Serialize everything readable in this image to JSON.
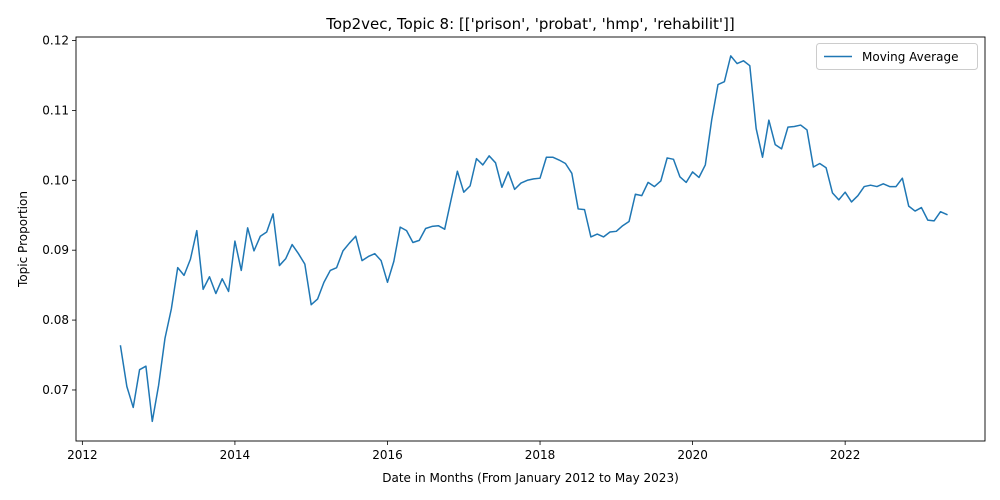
{
  "chart_data": {
    "type": "line",
    "title": "Top2vec, Topic 8: [['prison', 'probat', 'hmp', 'rehabilit']]",
    "xlabel": "Date in Months (From January 2012 to May 2023)",
    "ylabel": "Topic Proportion",
    "x_ticks": [
      "2012",
      "2014",
      "2016",
      "2018",
      "2020",
      "2022"
    ],
    "y_ticks": [
      "0.07",
      "0.08",
      "0.09",
      "0.10",
      "0.11",
      "0.12"
    ],
    "xlim": [
      "2011-12",
      "2023-11"
    ],
    "ylim": [
      0.0627,
      0.1205
    ],
    "grid": false,
    "legend_position": "top-right",
    "series": [
      {
        "name": "Moving Average",
        "color": "#1f77b4",
        "x": [
          "2012-07",
          "2012-08",
          "2012-09",
          "2012-10",
          "2012-11",
          "2012-12",
          "2013-01",
          "2013-02",
          "2013-03",
          "2013-04",
          "2013-05",
          "2013-06",
          "2013-07",
          "2013-08",
          "2013-09",
          "2013-10",
          "2013-11",
          "2013-12",
          "2014-01",
          "2014-02",
          "2014-03",
          "2014-04",
          "2014-05",
          "2014-06",
          "2014-07",
          "2014-08",
          "2014-09",
          "2014-10",
          "2014-11",
          "2014-12",
          "2015-01",
          "2015-02",
          "2015-03",
          "2015-04",
          "2015-05",
          "2015-06",
          "2015-07",
          "2015-08",
          "2015-09",
          "2015-10",
          "2015-11",
          "2015-12",
          "2016-01",
          "2016-02",
          "2016-03",
          "2016-04",
          "2016-05",
          "2016-06",
          "2016-07",
          "2016-08",
          "2016-09",
          "2016-10",
          "2016-11",
          "2016-12",
          "2017-01",
          "2017-02",
          "2017-03",
          "2017-04",
          "2017-05",
          "2017-06",
          "2017-07",
          "2017-08",
          "2017-09",
          "2017-10",
          "2017-11",
          "2017-12",
          "2018-01",
          "2018-02",
          "2018-03",
          "2018-04",
          "2018-05",
          "2018-06",
          "2018-07",
          "2018-08",
          "2018-09",
          "2018-10",
          "2018-11",
          "2018-12",
          "2019-01",
          "2019-02",
          "2019-03",
          "2019-04",
          "2019-05",
          "2019-06",
          "2019-07",
          "2019-08",
          "2019-09",
          "2019-10",
          "2019-11",
          "2019-12",
          "2020-01",
          "2020-02",
          "2020-03",
          "2020-04",
          "2020-05",
          "2020-06",
          "2020-07",
          "2020-08",
          "2020-09",
          "2020-10",
          "2020-11",
          "2020-12",
          "2021-01",
          "2021-02",
          "2021-03",
          "2021-04",
          "2021-05",
          "2021-06",
          "2021-07",
          "2021-08",
          "2021-09",
          "2021-10",
          "2021-11",
          "2021-12",
          "2022-01",
          "2022-02",
          "2022-03",
          "2022-04",
          "2022-05",
          "2022-06",
          "2022-07",
          "2022-08",
          "2022-09",
          "2022-10",
          "2022-11",
          "2022-12",
          "2023-01",
          "2023-02",
          "2023-03",
          "2023-04",
          "2023-05"
        ],
        "values": [
          0.0763,
          0.0705,
          0.0675,
          0.0729,
          0.0734,
          0.0655,
          0.0707,
          0.0774,
          0.0816,
          0.0875,
          0.0864,
          0.0887,
          0.0928,
          0.0844,
          0.0862,
          0.0838,
          0.0859,
          0.0841,
          0.0913,
          0.0871,
          0.0932,
          0.0899,
          0.092,
          0.0926,
          0.0952,
          0.0878,
          0.0888,
          0.0908,
          0.0895,
          0.088,
          0.0822,
          0.083,
          0.0854,
          0.0871,
          0.0875,
          0.0899,
          0.091,
          0.092,
          0.0885,
          0.0891,
          0.0895,
          0.0885,
          0.0854,
          0.0884,
          0.0933,
          0.0928,
          0.0911,
          0.0914,
          0.0931,
          0.0934,
          0.0935,
          0.093,
          0.0972,
          0.1013,
          0.0983,
          0.0992,
          0.1031,
          0.1022,
          0.1035,
          0.1025,
          0.099,
          0.1012,
          0.0987,
          0.0996,
          0.1,
          0.1002,
          0.1003,
          0.1033,
          0.1033,
          0.1029,
          0.1024,
          0.101,
          0.0959,
          0.0958,
          0.0919,
          0.0923,
          0.0919,
          0.0926,
          0.0927,
          0.0935,
          0.0941,
          0.098,
          0.0978,
          0.0997,
          0.0991,
          0.0999,
          0.1032,
          0.103,
          0.1005,
          0.0997,
          0.1012,
          0.1004,
          0.1022,
          0.1086,
          0.1137,
          0.1141,
          0.1178,
          0.1167,
          0.1171,
          0.1164,
          0.1074,
          0.1033,
          0.1086,
          0.1051,
          0.1045,
          0.1076,
          0.1077,
          0.1079,
          0.1072,
          0.1019,
          0.1024,
          0.1018,
          0.0982,
          0.0972,
          0.0983,
          0.0969,
          0.0978,
          0.0991,
          0.0993,
          0.0991,
          0.0995,
          0.0991,
          0.0991,
          0.1003,
          0.0963,
          0.0956,
          0.0961,
          0.0943,
          0.0942,
          0.0955,
          0.0951
        ]
      }
    ]
  }
}
